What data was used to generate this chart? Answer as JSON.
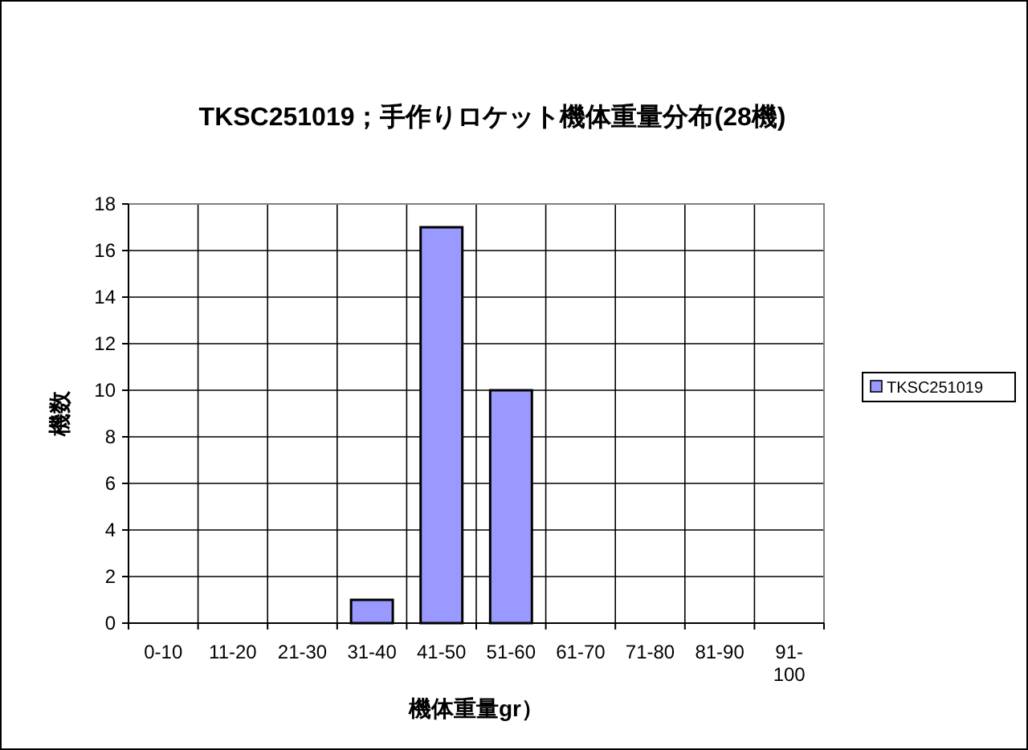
{
  "chart_data": {
    "type": "bar",
    "title": "TKSC251019；手作りロケット機体重量分布(28機)",
    "xlabel": "機体重量gr）",
    "ylabel": "機数",
    "categories": [
      "0-10",
      "11-20",
      "21-30",
      "31-40",
      "41-50",
      "51-60",
      "61-70",
      "71-80",
      "81-90",
      "91-100"
    ],
    "series": [
      {
        "name": "TKSC251019",
        "color": "#9999ff",
        "values": [
          0,
          0,
          0,
          1,
          17,
          10,
          0,
          0,
          0,
          0
        ]
      }
    ],
    "ylim": [
      0,
      18
    ],
    "yticks": [
      0,
      2,
      4,
      6,
      8,
      10,
      12,
      14,
      16,
      18
    ],
    "grid": true,
    "legend": "right"
  }
}
